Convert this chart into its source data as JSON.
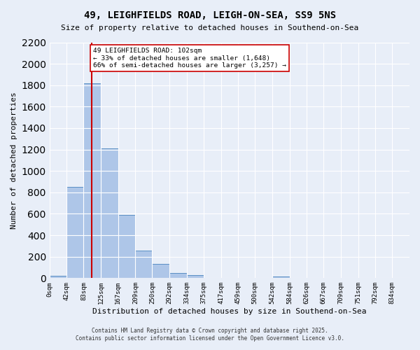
{
  "title": "49, LEIGHFIELDS ROAD, LEIGH-ON-SEA, SS9 5NS",
  "subtitle": "Size of property relative to detached houses in Southend-on-Sea",
  "xlabel": "Distribution of detached houses by size in Southend-on-Sea",
  "ylabel": "Number of detached properties",
  "bin_labels": [
    "0sqm",
    "42sqm",
    "83sqm",
    "125sqm",
    "167sqm",
    "209sqm",
    "250sqm",
    "292sqm",
    "334sqm",
    "375sqm",
    "417sqm",
    "459sqm",
    "500sqm",
    "542sqm",
    "584sqm",
    "626sqm",
    "667sqm",
    "709sqm",
    "751sqm",
    "792sqm",
    "834sqm"
  ],
  "bin_edges": [
    0,
    42,
    83,
    125,
    167,
    209,
    250,
    292,
    334,
    375,
    417,
    459,
    500,
    542,
    584,
    626,
    667,
    709,
    751,
    792,
    834
  ],
  "bar_heights": [
    25,
    850,
    1820,
    1210,
    590,
    260,
    135,
    45,
    30,
    0,
    0,
    0,
    0,
    15,
    0,
    0,
    0,
    0,
    0,
    0
  ],
  "bar_color": "#aec6e8",
  "bar_edge_color": "#5a8fc4",
  "property_size": 102,
  "red_line_color": "#cc0000",
  "annotation_line1": "49 LEIGHFIELDS ROAD: 102sqm",
  "annotation_line2": "← 33% of detached houses are smaller (1,648)",
  "annotation_line3": "66% of semi-detached houses are larger (3,257) →",
  "annotation_box_color": "#ffffff",
  "annotation_box_edge": "#cc0000",
  "ylim": [
    0,
    2200
  ],
  "yticks": [
    0,
    200,
    400,
    600,
    800,
    1000,
    1200,
    1400,
    1600,
    1800,
    2000,
    2200
  ],
  "background_color": "#e8eef8",
  "grid_color": "#ffffff",
  "footer_line1": "Contains HM Land Registry data © Crown copyright and database right 2025.",
  "footer_line2": "Contains public sector information licensed under the Open Government Licence v3.0."
}
